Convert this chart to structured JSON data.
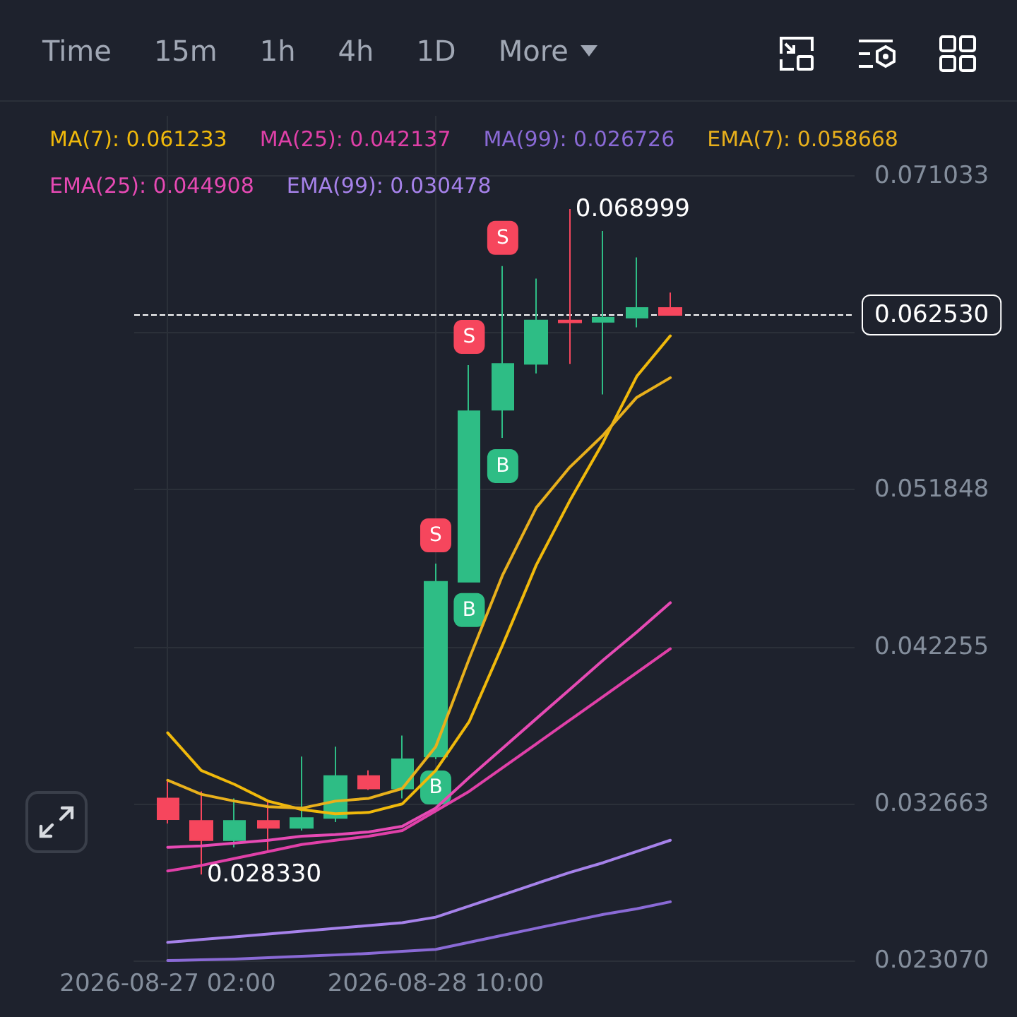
{
  "chart_data": {
    "type": "candlestick",
    "x": [
      "2026-08-27T02:00",
      "2026-08-27T06:00",
      "2026-08-27T10:00",
      "2026-08-27T14:00",
      "2026-08-27T18:00",
      "2026-08-27T22:00",
      "2026-08-28T02:00",
      "2026-08-28T06:00",
      "2026-08-28T10:00",
      "2026-08-28T14:00",
      "2026-08-28T18:00",
      "2026-08-28T22:00",
      "2026-08-29T02:00",
      "2026-08-29T06:00",
      "2026-08-29T10:00",
      "2026-08-29T14:00"
    ],
    "ohlc": [
      [
        0.03298,
        0.03409,
        0.03144,
        0.0317
      ],
      [
        0.03161,
        0.03341,
        0.02833,
        0.03042
      ],
      [
        0.03042,
        0.03298,
        0.02999,
        0.03161
      ],
      [
        0.03161,
        0.03281,
        0.02982,
        0.03118
      ],
      [
        0.03118,
        0.03554,
        0.03101,
        0.03178
      ],
      [
        0.03178,
        0.03614,
        0.03153,
        0.03435
      ],
      [
        0.03435,
        0.03469,
        0.03349,
        0.03358
      ],
      [
        0.03358,
        0.03682,
        0.03298,
        0.03537
      ],
      [
        0.03554,
        0.04733,
        0.03537,
        0.04622
      ],
      [
        0.04622,
        0.05946,
        0.04622,
        0.05664
      ],
      [
        0.05673,
        0.06552,
        0.05502,
        0.05954
      ],
      [
        0.05954,
        0.06475,
        0.05895,
        0.06219
      ],
      [
        0.06219,
        0.068999,
        0.05954,
        0.06207
      ],
      [
        0.06211,
        0.06766,
        0.05767,
        0.06236
      ],
      [
        0.06236,
        0.06604,
        0.06177,
        0.06296
      ],
      [
        0.06296,
        0.0639,
        0.06253,
        0.06253
      ]
    ],
    "series": [
      {
        "type": "line",
        "name": "MA(7): 0.061233",
        "color": "#f0b90b",
        "values": [
          0.03699,
          0.03469,
          0.03383,
          0.03281,
          0.0323,
          0.03204,
          0.03212,
          0.03264,
          0.03469,
          0.03768,
          0.04237,
          0.04724,
          0.05117,
          0.05476,
          0.05878,
          0.06125
        ]
      },
      {
        "type": "line",
        "name": "MA(25): 0.042137",
        "color": "#e040a8",
        "values": [
          0.02854,
          0.02888,
          0.02931,
          0.02973,
          0.03016,
          0.03042,
          0.03067,
          0.03101,
          0.03221,
          0.03341,
          0.03486,
          0.03631,
          0.03776,
          0.03921,
          0.04067,
          0.04212
        ]
      },
      {
        "type": "line",
        "name": "MA(99): 0.026726",
        "color": "#8a6ad6",
        "values": [
          0.02307,
          0.02311,
          0.02316,
          0.02324,
          0.02333,
          0.02341,
          0.0235,
          0.02363,
          0.02375,
          0.02418,
          0.02461,
          0.02504,
          0.02546,
          0.02589,
          0.02623,
          0.02666
        ]
      },
      {
        "type": "line",
        "name": "EMA(7): 0.058668",
        "color": "#e8b01c",
        "values": [
          0.03409,
          0.03323,
          0.03281,
          0.03247,
          0.03238,
          0.03281,
          0.03298,
          0.03358,
          0.03614,
          0.04152,
          0.04665,
          0.05075,
          0.05322,
          0.05519,
          0.05749,
          0.05869
        ]
      },
      {
        "type": "line",
        "name": "EMA(25): 0.044908",
        "color": "#e64ab4",
        "values": [
          0.02999,
          0.03007,
          0.03025,
          0.03042,
          0.03067,
          0.03076,
          0.03093,
          0.03127,
          0.03238,
          0.03426,
          0.03605,
          0.03785,
          0.03964,
          0.04144,
          0.04314,
          0.04494
        ]
      },
      {
        "type": "line",
        "name": "EMA(99): 0.030478",
        "color": "#a682ea",
        "values": [
          0.02418,
          0.02435,
          0.02452,
          0.02469,
          0.02486,
          0.02503,
          0.02521,
          0.02538,
          0.02572,
          0.0264,
          0.02708,
          0.02777,
          0.02845,
          0.02905,
          0.02973,
          0.03042
        ]
      }
    ],
    "xlim": [
      "2026-08-26T22:00",
      "2026-08-30T12:00"
    ],
    "xticks": [
      {
        "value": "2026-08-27T02:00",
        "label": "2026-08-27 02:00"
      },
      {
        "value": "2026-08-28T10:00",
        "label": "2026-08-28 10:00"
      }
    ],
    "ylim": [
      0.02307,
      0.0747
    ],
    "yticks": [
      {
        "value": 0.02307,
        "label": "0.023070"
      },
      {
        "value": 0.032663,
        "label": "0.032663"
      },
      {
        "value": 0.042255,
        "label": "0.042255"
      },
      {
        "value": 0.051848,
        "label": "0.051848"
      },
      {
        "value": 0.06144,
        "label": null
      },
      {
        "value": 0.071033,
        "label": "0.071033"
      }
    ],
    "ref_lines": [
      {
        "axis": "y",
        "value": 0.06253,
        "label": "0.062530",
        "color": "#ffffff",
        "line_style": "dashed"
      }
    ],
    "annotations": [
      "Time",
      "15m",
      "1h",
      "4h",
      "1D",
      "More",
      {
        "text": "S",
        "x": "2026-08-28T10:00",
        "y": 0.04733
      },
      {
        "text": "S",
        "x": "2026-08-28T14:00",
        "y": 0.05946
      },
      {
        "text": "S",
        "x": "2026-08-28T18:00",
        "y": 0.06552
      },
      {
        "text": "B",
        "x": "2026-08-28T10:00",
        "y": 0.03537
      },
      {
        "text": "B",
        "x": "2026-08-28T14:00",
        "y": 0.04622
      },
      {
        "text": "B",
        "x": "2026-08-28T18:00",
        "y": 0.05502
      },
      {
        "text": "0.068999",
        "x": "2026-08-29T02:00",
        "y": 0.068999
      },
      {
        "text": "0.028330",
        "x": "2026-08-27T06:00",
        "y": 0.02833
      }
    ],
    "legend": "top left",
    "marker": "none",
    "grid": true
  }
}
